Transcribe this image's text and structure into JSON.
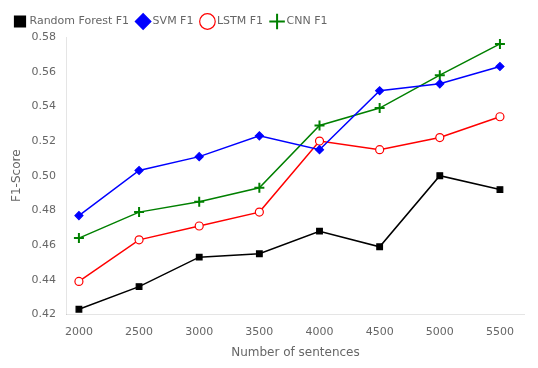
{
  "chart_data": {
    "type": "line",
    "x": [
      2000,
      2500,
      3000,
      3500,
      4000,
      4500,
      5000,
      5500
    ],
    "series": [
      {
        "name": "Random Forest F1",
        "color": "black",
        "marker": "square",
        "values": [
          0.423,
          0.436,
          0.453,
          0.455,
          0.468,
          0.459,
          0.5,
          0.492
        ]
      },
      {
        "name": "SVM F1",
        "color": "blue",
        "marker": "diamond",
        "values": [
          0.477,
          0.503,
          0.511,
          0.523,
          0.515,
          0.549,
          0.553,
          0.563
        ]
      },
      {
        "name": "LSTM F1",
        "color": "red",
        "marker": "circle",
        "values": [
          0.439,
          0.463,
          0.471,
          0.479,
          0.52,
          0.515,
          0.522,
          0.534
        ]
      },
      {
        "name": "CNN F1",
        "color": "green",
        "marker": "plus",
        "values": [
          0.464,
          0.479,
          0.485,
          0.493,
          0.529,
          0.539,
          0.558,
          0.576
        ]
      }
    ],
    "x_label": "Number of sentences",
    "y_label": "F1-Score",
    "xlim": [
      1900,
      5700
    ],
    "ylim": [
      0.42,
      0.58
    ],
    "xticks": [
      2000,
      2500,
      3000,
      3500,
      4000,
      4500,
      5000,
      5500
    ],
    "yticks": [
      0.42,
      0.44,
      0.46,
      0.48,
      {
        "value": 0.5,
        "label": "0.50"
      },
      0.52,
      0.54,
      0.56,
      0.58
    ],
    "grid": false,
    "legend": "upper left"
  }
}
